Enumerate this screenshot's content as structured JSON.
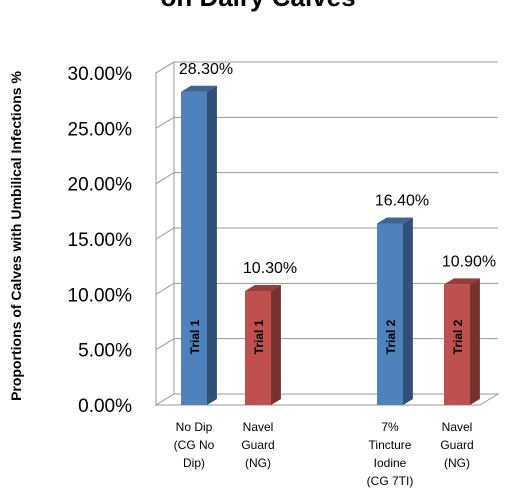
{
  "chart_data": {
    "type": "bar",
    "title": "on Dairy Calves",
    "ylabel": "Proportions of Calves with Umbilical Infections %",
    "xlabel": "",
    "ylim": [
      0,
      30
    ],
    "yticks": [
      "0.00%",
      "5.00%",
      "10.00%",
      "15.00%",
      "20.00%",
      "25.00%",
      "30.00%"
    ],
    "ytick_values": [
      0,
      5,
      10,
      15,
      20,
      25,
      30
    ],
    "grid": true,
    "bars": [
      {
        "category": [
          "No Dip",
          "(CG No",
          "Dip)"
        ],
        "value": 28.3,
        "label": "28.30%",
        "bar_text": "Trial 1",
        "color": "#4F81BD",
        "group": 0
      },
      {
        "category": [
          "Navel",
          "Guard",
          "(NG)"
        ],
        "value": 10.3,
        "label": "10.30%",
        "bar_text": "Trial 1",
        "color": "#C0504D",
        "group": 0
      },
      {
        "category": [
          "7%",
          "Tincture",
          "Iodine",
          "(CG 7TI)"
        ],
        "value": 16.4,
        "label": "16.40%",
        "bar_text": "Trial 2",
        "color": "#4F81BD",
        "group": 1
      },
      {
        "category": [
          "Navel",
          "Guard",
          "(NG)"
        ],
        "value": 10.9,
        "label": "10.90%",
        "bar_text": "Trial 2",
        "color": "#C0504D",
        "group": 1
      }
    ]
  }
}
